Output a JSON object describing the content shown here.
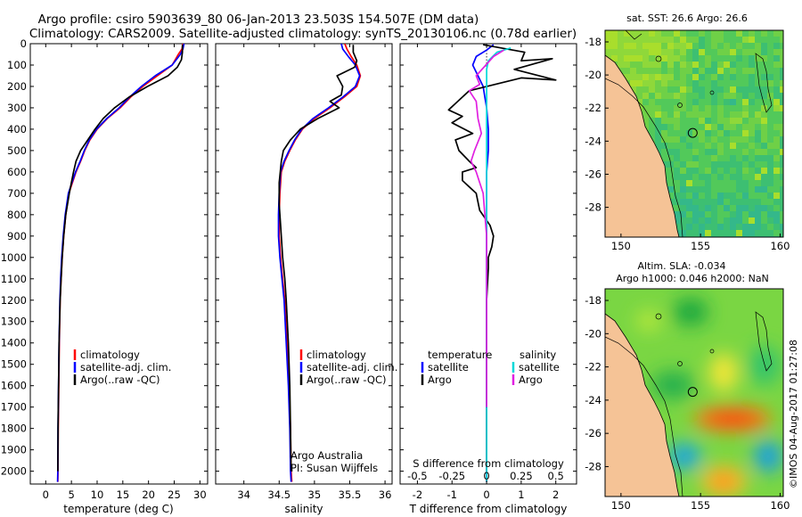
{
  "header": {
    "title_line1": "Argo profile: csiro 5903639_80 06-Jan-2013 23.503S 154.507E (DM data)",
    "title_line2": "Climatology: CARS2009. Satellite-adjusted climatology: synTS_20130106.nc (0.78d earlier)"
  },
  "colors": {
    "climatology": "#ff0000",
    "satellite": "#0000ff",
    "argo": "#000000",
    "salinity_satellite": "#00e5e5",
    "salinity_argo": "#e020e0",
    "land": "#f5c396"
  },
  "chart_data": [
    {
      "id": "temperature",
      "type": "line",
      "xlabel": "temperature (deg C)",
      "ylabel": "",
      "xlim": [
        -3,
        31.5
      ],
      "ylim": [
        2060,
        0
      ],
      "xticks": [
        "0",
        "5",
        "10",
        "15",
        "20",
        "25",
        "30"
      ],
      "xtick_values": [
        0,
        5,
        10,
        15,
        20,
        25,
        30
      ],
      "yticks": [
        "0",
        "100",
        "200",
        "300",
        "400",
        "500",
        "600",
        "700",
        "800",
        "900",
        "1000",
        "1100",
        "1200",
        "1300",
        "1400",
        "1500",
        "1600",
        "1700",
        "1800",
        "1900",
        "2000"
      ],
      "ytick_values": [
        0,
        100,
        200,
        300,
        400,
        500,
        600,
        700,
        800,
        900,
        1000,
        1100,
        1200,
        1300,
        1400,
        1500,
        1600,
        1700,
        1800,
        1900,
        2000
      ],
      "legend": [
        "climatology",
        "satellite-adj. clim.",
        "Argo(..raw -QC)"
      ],
      "series": [
        {
          "name": "climatology",
          "color": "#ff0000",
          "x": [
            26.7,
            26.5,
            25.8,
            24.6,
            21.7,
            18.9,
            16.5,
            14.5,
            12.0,
            10.0,
            8.6,
            7.6,
            6.8,
            5.9,
            5.2,
            4.5,
            3.9,
            3.5,
            3.2,
            3.0,
            2.8,
            2.65,
            2.55,
            2.45,
            2.4,
            2.35
          ],
          "y": [
            0,
            25,
            50,
            100,
            150,
            200,
            250,
            300,
            350,
            400,
            450,
            500,
            550,
            600,
            650,
            700,
            800,
            900,
            1000,
            1100,
            1200,
            1400,
            1600,
            1800,
            2000,
            2050
          ]
        },
        {
          "name": "satellite-adj. clim.",
          "color": "#0000ff",
          "x": [
            26.9,
            26.7,
            26.2,
            24.6,
            21.3,
            18.6,
            16.3,
            14.3,
            11.9,
            9.9,
            8.5,
            7.5,
            6.7,
            5.8,
            5.1,
            4.4,
            3.8,
            3.4,
            3.1,
            2.9,
            2.75,
            2.6,
            2.5,
            2.4,
            2.35,
            2.3
          ],
          "y": [
            0,
            25,
            50,
            100,
            150,
            200,
            250,
            300,
            350,
            400,
            450,
            500,
            550,
            600,
            650,
            700,
            800,
            900,
            1000,
            1100,
            1200,
            1400,
            1600,
            1800,
            2000,
            2050
          ]
        },
        {
          "name": "Argo",
          "color": "#000000",
          "x": [
            26.6,
            26.6,
            26.4,
            25.6,
            23.8,
            19.8,
            16.2,
            13.4,
            11.2,
            9.6,
            8.2,
            6.8,
            5.9,
            5.4,
            5.0,
            4.6,
            3.9,
            3.5,
            3.2,
            3.0,
            2.8,
            2.6,
            2.5,
            2.4,
            2.35
          ],
          "y": [
            5,
            40,
            75,
            110,
            150,
            200,
            250,
            300,
            350,
            400,
            450,
            500,
            550,
            600,
            650,
            700,
            800,
            900,
            1000,
            1100,
            1200,
            1400,
            1600,
            1800,
            2000
          ]
        }
      ]
    },
    {
      "id": "salinity",
      "type": "line",
      "xlabel": "salinity",
      "ylabel": "",
      "xlim": [
        33.6,
        36.1
      ],
      "ylim": [
        2060,
        0
      ],
      "xticks": [
        "34",
        "34.5",
        "35",
        "35.5",
        "36"
      ],
      "xtick_values": [
        34,
        34.5,
        35,
        35.5,
        36
      ],
      "legend": [
        "climatology",
        "satellite-adj. clim.",
        "Argo(..raw -QC)"
      ],
      "annotation": [
        "Argo Australia",
        "PI: Susan Wijffels"
      ],
      "series": [
        {
          "name": "climatology",
          "color": "#ff0000",
          "x": [
            35.43,
            35.46,
            35.52,
            35.6,
            35.65,
            35.6,
            35.42,
            35.22,
            35.0,
            34.83,
            34.73,
            34.65,
            34.58,
            34.53,
            34.51,
            34.5,
            34.5,
            34.52,
            34.55,
            34.58,
            34.61,
            34.64,
            34.66,
            34.67,
            34.68
          ],
          "y": [
            0,
            25,
            60,
            100,
            150,
            200,
            250,
            300,
            350,
            400,
            450,
            500,
            550,
            600,
            700,
            800,
            900,
            1000,
            1100,
            1200,
            1400,
            1600,
            1800,
            2000,
            2050
          ]
        },
        {
          "name": "satellite-adj. clim.",
          "color": "#0000ff",
          "x": [
            35.38,
            35.4,
            35.48,
            35.58,
            35.64,
            35.58,
            35.4,
            35.2,
            34.98,
            34.82,
            34.72,
            34.64,
            34.57,
            34.52,
            34.5,
            34.49,
            34.49,
            34.51,
            34.54,
            34.57,
            34.6,
            34.63,
            34.65,
            34.66,
            34.67
          ],
          "y": [
            0,
            25,
            60,
            100,
            150,
            200,
            250,
            300,
            350,
            400,
            450,
            500,
            550,
            600,
            700,
            800,
            900,
            1000,
            1100,
            1200,
            1400,
            1600,
            1800,
            2000,
            2050
          ]
        },
        {
          "name": "Argo",
          "color": "#000000",
          "x": [
            35.55,
            35.55,
            35.6,
            35.57,
            35.32,
            35.4,
            35.38,
            35.22,
            35.35,
            35.05,
            34.8,
            34.66,
            34.56,
            34.53,
            34.5,
            34.5,
            34.52,
            34.55,
            34.58,
            34.6,
            34.63,
            34.65,
            34.66,
            34.67
          ],
          "y": [
            5,
            40,
            80,
            110,
            150,
            200,
            240,
            270,
            300,
            350,
            400,
            450,
            500,
            550,
            650,
            750,
            850,
            1000,
            1100,
            1200,
            1400,
            1600,
            1800,
            2000
          ]
        }
      ]
    },
    {
      "id": "differences",
      "type": "line",
      "xlabel": "T difference from climatology",
      "xlabel_top": "S difference from climatology",
      "xlim": [
        -2.5,
        2.6
      ],
      "ylim": [
        2060,
        0
      ],
      "xticks": [
        "-2",
        "-1",
        "0",
        "1",
        "2"
      ],
      "xtick_values": [
        -2,
        -1,
        0,
        1,
        2
      ],
      "xticks_top": [
        "-0.5",
        "-0.25",
        "0",
        "0.25",
        "0.5"
      ],
      "xtick_top_values": [
        -2,
        -1,
        0,
        1,
        2
      ],
      "legend_headers": [
        "temperature",
        "salinity"
      ],
      "legend_left": [
        "satellite",
        "Argo"
      ],
      "legend_right": [
        "satellite",
        "Argo"
      ],
      "series": [
        {
          "name": "temperature satellite",
          "color": "#0000ff",
          "x": [
            0.2,
            0.0,
            -0.3,
            -0.4,
            -0.25,
            -0.1,
            -0.05,
            0.0,
            0.05,
            0.05,
            0.0,
            0.0,
            0.0,
            0.0,
            0.0,
            0.0,
            0.0,
            0.0,
            0.0
          ],
          "y": [
            5,
            30,
            60,
            100,
            150,
            200,
            250,
            300,
            400,
            500,
            600,
            700,
            800,
            900,
            1000,
            1200,
            1500,
            1800,
            2050
          ]
        },
        {
          "name": "temperature Argo",
          "color": "#000000",
          "x": [
            -0.1,
            1.1,
            1.0,
            1.9,
            0.8,
            2.0,
            1.0,
            -0.5,
            -0.9,
            -1.1,
            -0.7,
            -1.0,
            -0.4,
            -0.9,
            -0.8,
            -0.5,
            -0.3,
            -0.7,
            -0.7,
            -0.3,
            -0.2,
            0.1,
            0.2,
            0.15,
            0.05,
            0.05,
            0.0,
            0.0,
            0.0,
            0.0
          ],
          "y": [
            5,
            40,
            80,
            70,
            120,
            170,
            160,
            220,
            280,
            310,
            340,
            370,
            420,
            450,
            500,
            550,
            580,
            600,
            640,
            700,
            780,
            850,
            900,
            950,
            1000,
            1050,
            1200,
            1500,
            1800,
            2000
          ]
        },
        {
          "name": "salinity satellite",
          "color": "#00d8d8",
          "x": [
            0.7,
            0.3,
            0.05,
            0.0,
            0.0,
            0.0,
            0.0,
            0.0,
            0.0,
            0.0,
            0.0,
            0.0,
            0.0,
            0.0,
            0.0,
            0.0
          ],
          "y": [
            20,
            40,
            80,
            120,
            200,
            300,
            400,
            500,
            600,
            700,
            800,
            1000,
            1200,
            1500,
            1800,
            2050
          ]
        },
        {
          "name": "salinity Argo",
          "color": "#e020e0",
          "x": [
            0.5,
            0.2,
            -0.3,
            -0.2,
            -0.5,
            -0.3,
            -0.25,
            -0.15,
            -0.35,
            -0.45,
            -0.3,
            -0.2,
            -0.1,
            -0.05,
            0.0,
            0.0,
            0.0
          ],
          "y": [
            30,
            60,
            150,
            190,
            220,
            270,
            350,
            420,
            500,
            550,
            600,
            650,
            700,
            800,
            900,
            1200,
            1700
          ]
        }
      ]
    },
    {
      "id": "sst_map",
      "type": "heatmap",
      "title": "sat. SST: 26.6 Argo: 26.6",
      "xticks": [
        "150",
        "155",
        "160"
      ],
      "xtick_values": [
        150,
        155,
        160
      ],
      "yticks": [
        "-18",
        "-20",
        "-22",
        "-24",
        "-26",
        "-28"
      ],
      "ytick_values": [
        -18,
        -20,
        -22,
        -24,
        -26,
        -28
      ],
      "xlim": [
        149,
        160.2
      ],
      "ylim": [
        -29.8,
        -17.3
      ],
      "argo_position": [
        154.507,
        -23.503
      ]
    },
    {
      "id": "sla_map",
      "type": "heatmap",
      "title_line1": "Altim. SLA: -0.034",
      "title_line2": "Argo h1000: 0.046 h2000: NaN",
      "xticks": [
        "150",
        "155",
        "160"
      ],
      "xtick_values": [
        150,
        155,
        160
      ],
      "yticks": [
        "-18",
        "-20",
        "-22",
        "-24",
        "-26",
        "-28"
      ],
      "ytick_values": [
        -18,
        -20,
        -22,
        -24,
        -26,
        -28
      ],
      "xlim": [
        149,
        160.2
      ],
      "ylim": [
        -29.8,
        -17.3
      ],
      "argo_position": [
        154.507,
        -23.503
      ]
    }
  ],
  "footer": {
    "stamp": "©IMOS 04-Aug-2017 01:27:08"
  }
}
